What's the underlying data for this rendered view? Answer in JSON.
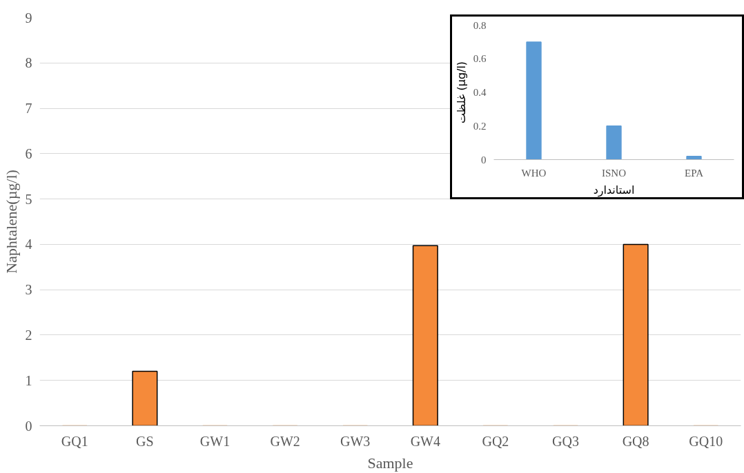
{
  "chart_data": [
    {
      "type": "bar",
      "xlabel": "Sample",
      "ylabel": "Naphtalene(µg/l)",
      "categories": [
        "GQ1",
        "GS",
        "GW1",
        "GW2",
        "GW3",
        "GW4",
        "GQ2",
        "GQ3",
        "GQ8",
        "GQ10"
      ],
      "values": [
        0,
        1.2,
        0,
        0,
        0,
        3.97,
        0,
        0,
        4.0,
        0
      ],
      "color": "#f58a3a",
      "ylim": [
        0,
        9
      ],
      "yticks": [
        0,
        1,
        2,
        3,
        4,
        5,
        6,
        7,
        8,
        9
      ],
      "grid": "y"
    },
    {
      "type": "bar",
      "xlabel": "استاندارد",
      "ylabel": "غلظت (µg/l)",
      "categories": [
        "WHO",
        "ISNO",
        "EPA"
      ],
      "values": [
        0.7,
        0.2,
        0.02
      ],
      "color": "#5b9bd5",
      "ylim": [
        0,
        0.8
      ],
      "yticks": [
        0,
        0.2,
        0.4,
        0.6,
        0.8
      ],
      "grid": false
    }
  ]
}
